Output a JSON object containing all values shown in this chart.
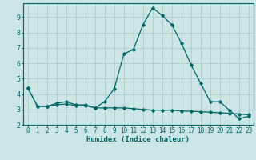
{
  "title": "",
  "xlabel": "Humidex (Indice chaleur)",
  "ylabel": "",
  "bg_color": "#cce5e5",
  "grid_color": "#aacccc",
  "line_color": "#006666",
  "x_values": [
    0,
    1,
    2,
    3,
    4,
    5,
    6,
    7,
    8,
    9,
    10,
    11,
    12,
    13,
    14,
    15,
    16,
    17,
    18,
    19,
    20,
    21,
    22,
    23
  ],
  "line1_y": [
    4.4,
    3.2,
    3.2,
    3.4,
    3.5,
    3.3,
    3.3,
    3.1,
    3.5,
    4.35,
    6.6,
    6.9,
    8.5,
    9.6,
    9.1,
    8.5,
    7.3,
    5.9,
    4.7,
    3.5,
    3.5,
    2.95,
    2.4,
    2.55
  ],
  "line2_y": [
    4.4,
    3.2,
    3.2,
    3.3,
    3.35,
    3.25,
    3.25,
    3.1,
    3.1,
    3.1,
    3.1,
    3.05,
    3.0,
    2.95,
    2.95,
    2.95,
    2.9,
    2.88,
    2.85,
    2.82,
    2.78,
    2.75,
    2.7,
    2.65
  ],
  "ylim": [
    2,
    9.9
  ],
  "xlim": [
    -0.5,
    23.5
  ],
  "yticks": [
    2,
    3,
    4,
    5,
    6,
    7,
    8,
    9
  ],
  "xticks": [
    0,
    1,
    2,
    3,
    4,
    5,
    6,
    7,
    8,
    9,
    10,
    11,
    12,
    13,
    14,
    15,
    16,
    17,
    18,
    19,
    20,
    21,
    22,
    23
  ],
  "tick_fontsize": 5.5,
  "xlabel_fontsize": 6.5,
  "ylabel_fontsize": 6.5,
  "marker_size": 1.8,
  "line_width": 0.9
}
